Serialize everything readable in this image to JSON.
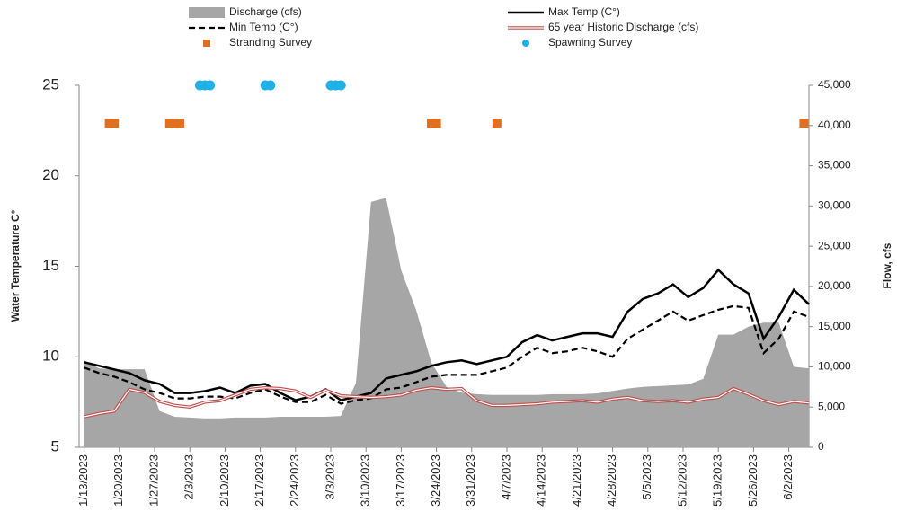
{
  "chart_data": {
    "type": "line",
    "y_label": "Water Temperature C°",
    "y2_label": "Flow, cfs",
    "x": [
      "1/13/2023",
      "1/16/2023",
      "1/19/2023",
      "1/22/2023",
      "1/25/2023",
      "1/28/2023",
      "1/31/2023",
      "2/3/2023",
      "2/6/2023",
      "2/9/2023",
      "2/12/2023",
      "2/15/2023",
      "2/18/2023",
      "2/21/2023",
      "2/24/2023",
      "2/27/2023",
      "3/2/2023",
      "3/5/2023",
      "3/8/2023",
      "3/11/2023",
      "3/14/2023",
      "3/17/2023",
      "3/20/2023",
      "3/23/2023",
      "3/26/2023",
      "3/29/2023",
      "4/1/2023",
      "4/4/2023",
      "4/7/2023",
      "4/10/2023",
      "4/13/2023",
      "4/16/2023",
      "4/19/2023",
      "4/22/2023",
      "4/25/2023",
      "4/28/2023",
      "5/1/2023",
      "5/4/2023",
      "5/7/2023",
      "5/10/2023",
      "5/13/2023",
      "5/16/2023",
      "5/19/2023",
      "5/22/2023",
      "5/25/2023",
      "5/28/2023",
      "5/31/2023",
      "6/3/2023",
      "6/6/2023"
    ],
    "xlim": [
      "1/12/2023",
      "6/6/2023"
    ],
    "xticks": [
      "1/13/2023",
      "1/20/2023",
      "1/27/2023",
      "2/3/2023",
      "2/10/2023",
      "2/17/2023",
      "2/24/2023",
      "3/3/2023",
      "3/10/2023",
      "3/17/2023",
      "3/24/2023",
      "3/31/2023",
      "4/7/2023",
      "4/14/2023",
      "4/21/2023",
      "4/28/2023",
      "5/5/2023",
      "5/12/2023",
      "5/19/2023",
      "5/26/2023",
      "6/2/2023"
    ],
    "ylim": [
      5,
      25
    ],
    "yticks": [
      5,
      10,
      15,
      20,
      25
    ],
    "y2lim": [
      0,
      45000
    ],
    "y2ticks": [
      0,
      {
        "value": 5000,
        "label": "5,000"
      },
      {
        "value": 10000,
        "label": "10,000"
      },
      {
        "value": 15000,
        "label": "15,000"
      },
      {
        "value": 20000,
        "label": "20,000"
      },
      {
        "value": 25000,
        "label": "25,000"
      },
      {
        "value": 30000,
        "label": "30,000"
      },
      {
        "value": 35000,
        "label": "35,000"
      },
      {
        "value": 40000,
        "label": "40,000"
      },
      {
        "value": 45000,
        "label": "45,000"
      }
    ],
    "series": [
      {
        "name": "Discharge (cfs)",
        "color": "#a6a6a6",
        "style": "area",
        "axis": "y2",
        "values": [
          10800,
          9800,
          9700,
          9700,
          9700,
          4500,
          3800,
          3700,
          3600,
          3600,
          3700,
          3700,
          3700,
          3800,
          3800,
          3800,
          3800,
          3900,
          8000,
          30500,
          31000,
          22000,
          17000,
          10500,
          7500,
          6800,
          6600,
          6500,
          6500,
          6500,
          6500,
          6600,
          6600,
          6600,
          6700,
          7000,
          7300,
          7500,
          7600,
          7700,
          7800,
          8500,
          14000,
          14000,
          15000,
          15500,
          15500,
          10000,
          9800
        ]
      },
      {
        "name": "Max Temp (C°)",
        "color": "#000000",
        "style": "line",
        "values": [
          9.7,
          9.5,
          9.3,
          9.1,
          8.7,
          8.5,
          8.0,
          8.0,
          8.1,
          8.3,
          8.0,
          8.4,
          8.5,
          8.0,
          7.6,
          7.8,
          8.2,
          7.6,
          7.8,
          8.0,
          8.8,
          9.0,
          9.2,
          9.5,
          9.7,
          9.8,
          9.6,
          9.8,
          10.0,
          10.8,
          11.2,
          10.9,
          11.1,
          11.3,
          11.3,
          11.1,
          12.5,
          13.2,
          13.5,
          14.0,
          13.3,
          13.8,
          14.8,
          14.0,
          13.5,
          11.0,
          12.2,
          13.7,
          12.9
        ]
      },
      {
        "name": "Min Temp (C°)",
        "color": "#000000",
        "style": "dashed",
        "values": [
          9.4,
          9.1,
          8.9,
          8.6,
          8.2,
          8.0,
          7.7,
          7.7,
          7.8,
          7.8,
          7.7,
          8.0,
          8.2,
          7.8,
          7.5,
          7.5,
          7.9,
          7.4,
          7.6,
          7.7,
          8.2,
          8.3,
          8.6,
          8.9,
          9.0,
          9.0,
          9.0,
          9.2,
          9.4,
          10.0,
          10.5,
          10.2,
          10.3,
          10.5,
          10.3,
          10.0,
          11.0,
          11.5,
          12.0,
          12.5,
          12.0,
          12.3,
          12.6,
          12.8,
          12.7,
          10.2,
          11.0,
          12.5,
          12.2
        ]
      },
      {
        "name": "65 year Historic Discharge (cfs)",
        "color": "#c0504d",
        "style": "double",
        "axis": "y2",
        "values": [
          3800,
          4200,
          4500,
          7200,
          6800,
          5700,
          5200,
          5000,
          5600,
          5800,
          6500,
          7200,
          7400,
          7300,
          7000,
          6200,
          7100,
          6400,
          6300,
          6200,
          6300,
          6500,
          7100,
          7400,
          7200,
          7300,
          5800,
          5200,
          5200,
          5300,
          5400,
          5600,
          5700,
          5800,
          5600,
          6000,
          6200,
          5800,
          5700,
          5800,
          5600,
          6000,
          6200,
          7300,
          6600,
          5800,
          5300,
          5700,
          5500
        ]
      },
      {
        "name": "Stranding Survey",
        "color": "#e07020",
        "style": "square",
        "x": [
          "1/18/2023",
          "1/19/2023",
          "1/30/2023",
          "1/31/2023",
          "2/1/2023",
          "3/23/2023",
          "3/24/2023",
          "4/5/2023",
          "6/5/2023"
        ],
        "values": [
          22.9,
          22.9,
          22.9,
          22.9,
          22.9,
          22.9,
          22.9,
          22.9,
          22.9
        ]
      },
      {
        "name": "Spawning Survey",
        "color": "#1fb0e8",
        "style": "circle",
        "x": [
          "2/5/2023",
          "2/6/2023",
          "2/7/2023",
          "2/18/2023",
          "2/19/2023",
          "3/3/2023",
          "3/4/2023",
          "3/5/2023"
        ],
        "values": [
          25,
          25,
          25,
          25,
          25,
          25,
          25,
          25
        ]
      }
    ]
  }
}
